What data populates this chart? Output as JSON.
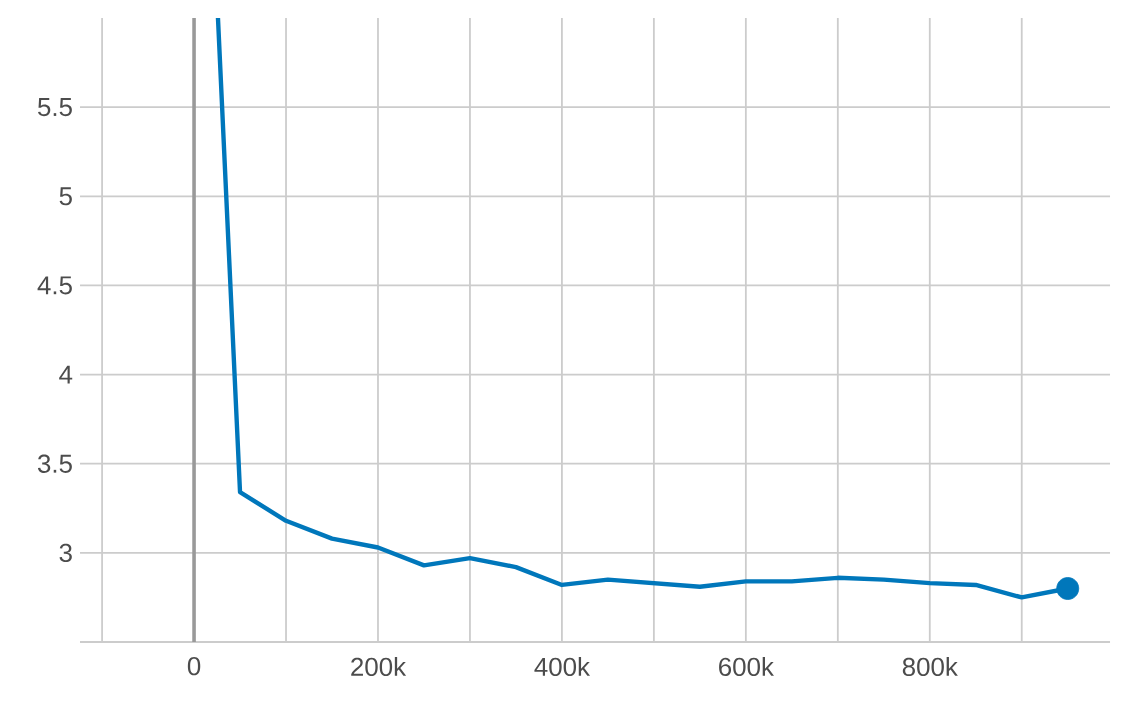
{
  "chart_data": {
    "type": "line",
    "x": [
      26000,
      50000,
      100000,
      150000,
      200000,
      250000,
      300000,
      350000,
      400000,
      450000,
      500000,
      550000,
      600000,
      650000,
      700000,
      750000,
      800000,
      850000,
      900000,
      950000
    ],
    "series": [
      {
        "color": "#0077bb",
        "marker": "none",
        "values": [
          6.0,
          3.34,
          3.18,
          3.08,
          3.03,
          2.93,
          2.97,
          2.92,
          2.82,
          2.85,
          2.83,
          2.81,
          2.84,
          2.84,
          2.86,
          2.85,
          2.83,
          2.82,
          2.75,
          2.8
        ]
      },
      {
        "type": "scatter",
        "color": "#0077bb",
        "marker": "circle",
        "values": [
          null,
          null,
          null,
          null,
          null,
          null,
          null,
          null,
          null,
          null,
          null,
          null,
          null,
          null,
          null,
          null,
          null,
          null,
          null,
          2.8
        ]
      }
    ],
    "xlim": [
      -124000,
      996000
    ],
    "ylim": [
      2.5,
      6.0
    ],
    "xticks": [
      {
        "value": -100000,
        "label": null
      },
      0,
      {
        "value": 100000,
        "label": null
      },
      {
        "value": 200000,
        "label": "200k"
      },
      {
        "value": 300000,
        "label": null
      },
      {
        "value": 400000,
        "label": "400k"
      },
      {
        "value": 500000,
        "label": null
      },
      {
        "value": 600000,
        "label": "600k"
      },
      {
        "value": 700000,
        "label": null
      },
      {
        "value": 800000,
        "label": "800k"
      },
      {
        "value": 900000,
        "label": null
      }
    ],
    "yticks": [
      {
        "value": 2.5,
        "label": null
      },
      3,
      3.5,
      4,
      4.5,
      5,
      5.5
    ],
    "grid": true,
    "line_style": "solid"
  }
}
